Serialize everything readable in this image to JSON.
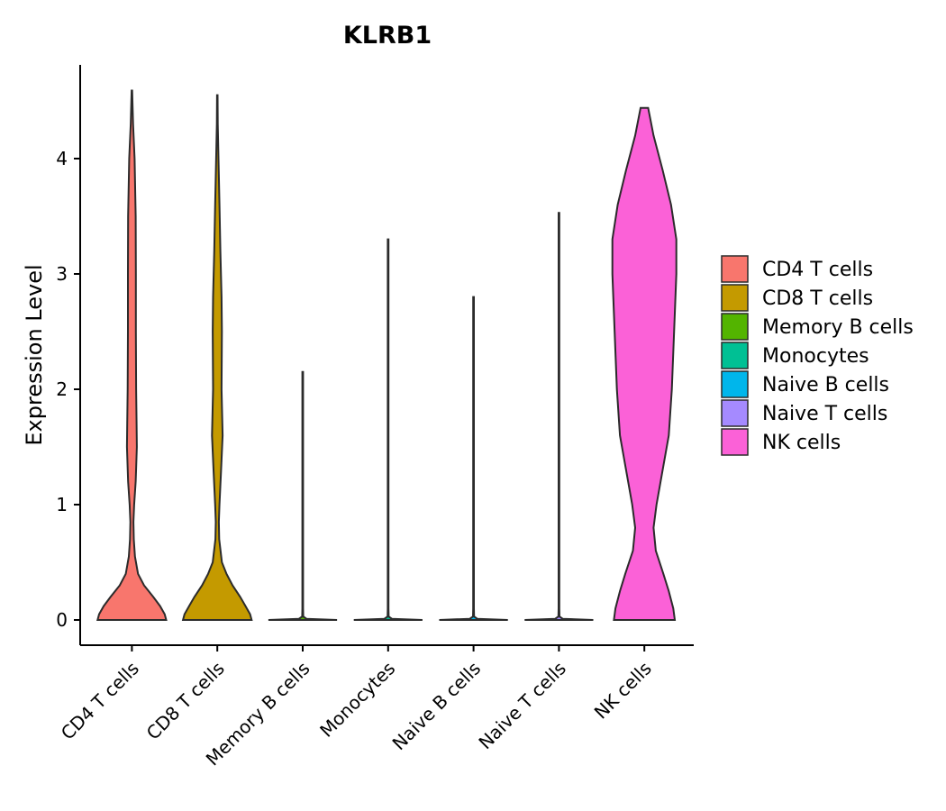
{
  "chart_data": {
    "type": "violin",
    "title": "KLRB1",
    "xlabel": "",
    "ylabel": "Expression Level",
    "ylim": [
      -0.22,
      4.82
    ],
    "yticks": [
      0,
      1,
      2,
      3,
      4
    ],
    "grid": false,
    "legend_position": "right",
    "categories": [
      "CD4 T cells",
      "CD8 T cells",
      "Memory B cells",
      "Monocytes",
      "Naive B cells",
      "Naive T cells",
      "NK cells"
    ],
    "colors": [
      "#F8766D",
      "#C49A00",
      "#53B400",
      "#00C094",
      "#00B6EB",
      "#A58AFF",
      "#FB61D7"
    ],
    "series": [
      {
        "name": "CD4 T cells",
        "max": 4.59,
        "profile": [
          [
            0,
            0.45
          ],
          [
            0.05,
            0.43
          ],
          [
            0.12,
            0.37
          ],
          [
            0.2,
            0.28
          ],
          [
            0.3,
            0.16
          ],
          [
            0.4,
            0.08
          ],
          [
            0.55,
            0.04
          ],
          [
            0.7,
            0.025
          ],
          [
            0.85,
            0.02
          ],
          [
            1.0,
            0.03
          ],
          [
            1.2,
            0.05
          ],
          [
            1.5,
            0.065
          ],
          [
            1.7,
            0.062
          ],
          [
            2.0,
            0.056
          ],
          [
            2.5,
            0.052
          ],
          [
            3.0,
            0.052
          ],
          [
            3.5,
            0.05
          ],
          [
            4.0,
            0.035
          ],
          [
            4.3,
            0.015
          ],
          [
            4.59,
            0.004
          ]
        ]
      },
      {
        "name": "CD8 T cells",
        "max": 4.55,
        "profile": [
          [
            0,
            0.45
          ],
          [
            0.05,
            0.43
          ],
          [
            0.12,
            0.37
          ],
          [
            0.2,
            0.3
          ],
          [
            0.3,
            0.2
          ],
          [
            0.4,
            0.12
          ],
          [
            0.5,
            0.06
          ],
          [
            0.7,
            0.025
          ],
          [
            0.85,
            0.02
          ],
          [
            1.0,
            0.028
          ],
          [
            1.3,
            0.05
          ],
          [
            1.6,
            0.07
          ],
          [
            2.0,
            0.055
          ],
          [
            2.5,
            0.06
          ],
          [
            2.8,
            0.055
          ],
          [
            3.2,
            0.04
          ],
          [
            3.6,
            0.028
          ],
          [
            4.0,
            0.015
          ],
          [
            4.3,
            0.006
          ],
          [
            4.55,
            0.003
          ]
        ]
      },
      {
        "name": "Memory B cells",
        "max": 2.15,
        "profile": [
          [
            0,
            0.45
          ],
          [
            0.01,
            0.05
          ],
          [
            0.03,
            0.007
          ],
          [
            0.1,
            0.005
          ],
          [
            2.15,
            0.005
          ]
        ]
      },
      {
        "name": "Monocytes",
        "max": 3.3,
        "profile": [
          [
            0,
            0.45
          ],
          [
            0.01,
            0.05
          ],
          [
            0.03,
            0.007
          ],
          [
            0.1,
            0.005
          ],
          [
            3.3,
            0.005
          ]
        ]
      },
      {
        "name": "Naive B cells",
        "max": 2.8,
        "profile": [
          [
            0,
            0.45
          ],
          [
            0.01,
            0.05
          ],
          [
            0.03,
            0.007
          ],
          [
            0.1,
            0.005
          ],
          [
            2.8,
            0.005
          ]
        ]
      },
      {
        "name": "Naive T cells",
        "max": 3.53,
        "profile": [
          [
            0,
            0.45
          ],
          [
            0.01,
            0.05
          ],
          [
            0.03,
            0.007
          ],
          [
            0.1,
            0.005
          ],
          [
            3.53,
            0.005
          ]
        ]
      },
      {
        "name": "NK cells",
        "max": 4.44,
        "profile": [
          [
            0,
            0.4
          ],
          [
            0.1,
            0.38
          ],
          [
            0.25,
            0.32
          ],
          [
            0.4,
            0.25
          ],
          [
            0.6,
            0.15
          ],
          [
            0.8,
            0.12
          ],
          [
            1.0,
            0.16
          ],
          [
            1.3,
            0.24
          ],
          [
            1.6,
            0.32
          ],
          [
            2.0,
            0.36
          ],
          [
            2.5,
            0.39
          ],
          [
            3.0,
            0.42
          ],
          [
            3.3,
            0.42
          ],
          [
            3.6,
            0.35
          ],
          [
            3.9,
            0.24
          ],
          [
            4.2,
            0.12
          ],
          [
            4.44,
            0.05
          ]
        ]
      }
    ]
  }
}
